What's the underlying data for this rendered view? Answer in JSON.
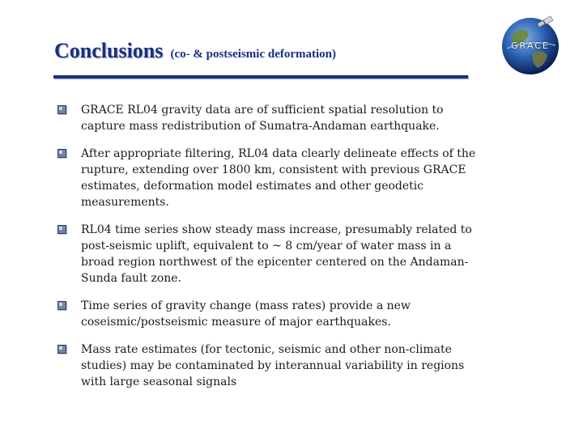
{
  "header": {
    "title": "Conclusions",
    "subtitle": "(co- & postseismic deformation)"
  },
  "logo": {
    "text": "GRACE"
  },
  "colors": {
    "title": "#1a2f80",
    "rule": "#1a2f80",
    "bullet": "#6f86a6"
  },
  "bullets": [
    {
      "icon": "square-bullet-icon",
      "text": "GRACE RL04 gravity data are of sufficient spatial resolution to capture mass redistribution of Sumatra-Andaman earthquake."
    },
    {
      "icon": "square-bullet-icon",
      "text": "After appropriate filtering, RL04 data clearly delineate effects of the rupture, extending over 1800 km, consistent with previous GRACE estimates, deformation model estimates and other geodetic measurements."
    },
    {
      "icon": "square-bullet-icon",
      "text": "RL04 time series show steady mass increase, presumably related to post-seismic uplift, equivalent to ~ 8 cm/year of water mass in a broad region northwest of the epicenter centered on the Andaman-Sunda fault zone."
    },
    {
      "icon": "square-bullet-icon",
      "text": "Time series of gravity change (mass rates) provide a new coseismic/postseismic measure of major earthquakes."
    },
    {
      "icon": "square-bullet-icon",
      "text": "Mass rate estimates (for tectonic, seismic and other non-climate studies) may be contaminated by interannual variability in regions with large seasonal signals"
    }
  ]
}
